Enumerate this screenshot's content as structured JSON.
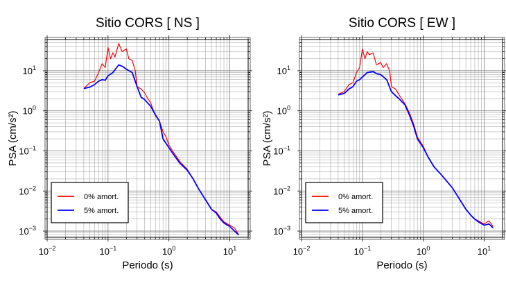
{
  "chart_data": [
    {
      "type": "line",
      "title": "Sitio CORS [ NS ]",
      "xlabel": "Periodo (s)",
      "ylabel": "PSA (cm/s²)",
      "xscale": "log",
      "yscale": "log",
      "xlim": [
        0.01,
        20
      ],
      "ylim": [
        0.0007,
        60
      ],
      "grid": true,
      "legend_placement": "bottom-left",
      "x_ticks": [
        {
          "value": 0.01,
          "base": "10",
          "exp": "−2"
        },
        {
          "value": 0.1,
          "base": "10",
          "exp": "−1"
        },
        {
          "value": 1,
          "base": "10",
          "exp": "0"
        },
        {
          "value": 10,
          "base": "10",
          "exp": "1"
        }
      ],
      "y_ticks": [
        {
          "value": 0.001,
          "base": "10",
          "exp": "−3"
        },
        {
          "value": 0.01,
          "base": "10",
          "exp": "−2"
        },
        {
          "value": 0.1,
          "base": "10",
          "exp": "−1"
        },
        {
          "value": 1,
          "base": "10",
          "exp": "0"
        },
        {
          "value": 10,
          "base": "10",
          "exp": "1"
        }
      ],
      "series": [
        {
          "name": "0% amort.",
          "color": "#ff0000",
          "x": [
            0.04,
            0.05,
            0.06,
            0.07,
            0.08,
            0.09,
            0.1,
            0.11,
            0.12,
            0.13,
            0.15,
            0.17,
            0.2,
            0.22,
            0.25,
            0.28,
            0.3,
            0.35,
            0.4,
            0.45,
            0.5,
            0.6,
            0.7,
            0.8,
            0.9,
            1.0,
            1.2,
            1.5,
            2,
            2.5,
            3,
            4,
            5,
            6,
            7,
            8,
            10,
            12,
            14
          ],
          "values": [
            3.6,
            5.0,
            5.5,
            9.0,
            15,
            12,
            38,
            20,
            28,
            22,
            48,
            30,
            35,
            20,
            18,
            10,
            4.0,
            3.5,
            2.8,
            2.0,
            1.6,
            0.75,
            0.55,
            0.3,
            0.22,
            0.14,
            0.09,
            0.055,
            0.035,
            0.02,
            0.012,
            0.006,
            0.0035,
            0.003,
            0.0022,
            0.0017,
            0.0014,
            0.0012,
            0.0008
          ]
        },
        {
          "name": "5% amort.",
          "color": "#0000ff",
          "x": [
            0.04,
            0.05,
            0.06,
            0.07,
            0.08,
            0.09,
            0.1,
            0.12,
            0.15,
            0.17,
            0.2,
            0.25,
            0.3,
            0.35,
            0.4,
            0.5,
            0.6,
            0.7,
            0.8,
            1.0,
            1.2,
            1.5,
            2,
            2.5,
            3,
            4,
            5,
            6,
            7,
            8,
            10,
            12,
            14
          ],
          "values": [
            3.6,
            3.9,
            4.5,
            5.5,
            6.0,
            5.8,
            7.5,
            9.0,
            14,
            13,
            11,
            9.0,
            4.0,
            2.2,
            1.9,
            1.3,
            0.8,
            0.55,
            0.2,
            0.12,
            0.08,
            0.05,
            0.033,
            0.02,
            0.012,
            0.006,
            0.0035,
            0.0028,
            0.002,
            0.0016,
            0.0013,
            0.001,
            0.0008
          ]
        }
      ]
    },
    {
      "type": "line",
      "title": "Sitio CORS [ EW ]",
      "xlabel": "Periodo (s)",
      "ylabel": "PSA (cm/s²)",
      "xscale": "log",
      "yscale": "log",
      "xlim": [
        0.01,
        20
      ],
      "ylim": [
        0.0007,
        60
      ],
      "grid": true,
      "legend_placement": "bottom-left",
      "x_ticks": [
        {
          "value": 0.01,
          "base": "10",
          "exp": "−2"
        },
        {
          "value": 0.1,
          "base": "10",
          "exp": "−1"
        },
        {
          "value": 1,
          "base": "10",
          "exp": "0"
        },
        {
          "value": 10,
          "base": "10",
          "exp": "1"
        }
      ],
      "y_ticks": [
        {
          "value": 0.001,
          "base": "10",
          "exp": "−3"
        },
        {
          "value": 0.01,
          "base": "10",
          "exp": "−2"
        },
        {
          "value": 0.1,
          "base": "10",
          "exp": "−1"
        },
        {
          "value": 1,
          "base": "10",
          "exp": "0"
        },
        {
          "value": 10,
          "base": "10",
          "exp": "1"
        }
      ],
      "series": [
        {
          "name": "0% amort.",
          "color": "#ff0000",
          "x": [
            0.04,
            0.05,
            0.06,
            0.07,
            0.08,
            0.09,
            0.1,
            0.11,
            0.12,
            0.13,
            0.15,
            0.17,
            0.2,
            0.22,
            0.25,
            0.28,
            0.3,
            0.35,
            0.4,
            0.5,
            0.6,
            0.7,
            0.8,
            1.0,
            1.2,
            1.5,
            2,
            3,
            4,
            5,
            6,
            7,
            8,
            10,
            12,
            14
          ],
          "values": [
            2.6,
            3.0,
            4.5,
            5.0,
            9.0,
            12,
            35,
            20,
            30,
            25,
            28,
            14,
            16,
            12,
            15,
            10,
            4.0,
            3.5,
            2.5,
            1.5,
            0.85,
            0.45,
            0.22,
            0.13,
            0.07,
            0.04,
            0.025,
            0.012,
            0.006,
            0.0035,
            0.0025,
            0.002,
            0.0018,
            0.0015,
            0.0018,
            0.0013
          ]
        },
        {
          "name": "5% amort.",
          "color": "#0000ff",
          "x": [
            0.04,
            0.05,
            0.06,
            0.07,
            0.08,
            0.09,
            0.1,
            0.12,
            0.15,
            0.17,
            0.2,
            0.25,
            0.3,
            0.35,
            0.4,
            0.5,
            0.6,
            0.7,
            0.8,
            1.0,
            1.2,
            1.5,
            2,
            3,
            4,
            5,
            6,
            7,
            8,
            10,
            12,
            14
          ],
          "values": [
            2.5,
            2.7,
            3.5,
            4.0,
            5.5,
            6.0,
            7.0,
            9.0,
            9.5,
            8.5,
            8.0,
            6.0,
            3.0,
            2.4,
            2.0,
            1.4,
            0.75,
            0.4,
            0.2,
            0.12,
            0.07,
            0.04,
            0.025,
            0.012,
            0.006,
            0.0035,
            0.0025,
            0.002,
            0.0017,
            0.0014,
            0.0015,
            0.0012
          ]
        }
      ]
    }
  ]
}
